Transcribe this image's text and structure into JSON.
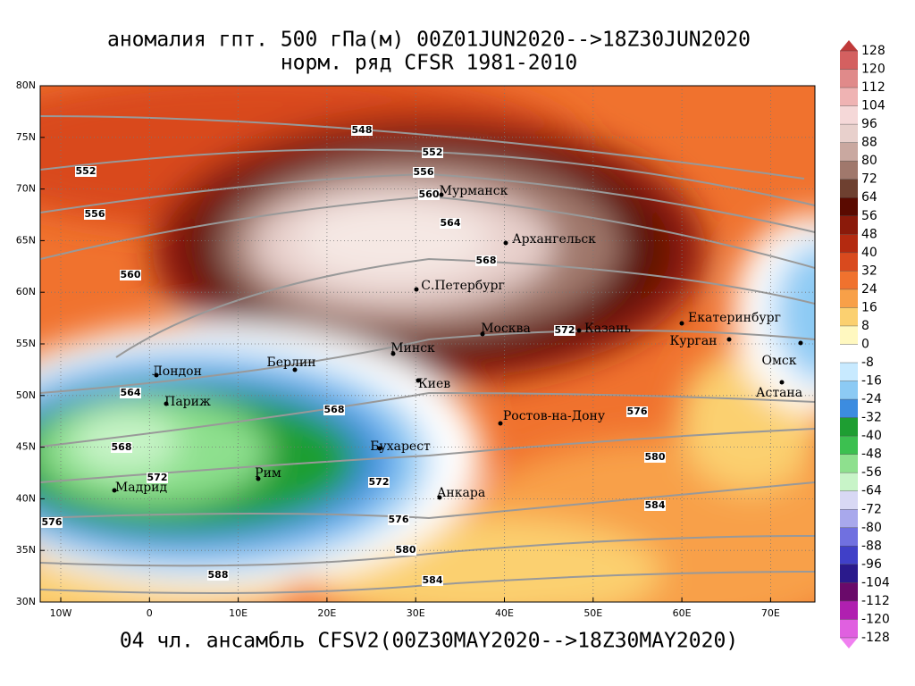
{
  "title": [
    "аномалия гпт. 500 гПа(м) 00Z01JUN2020-->18Z30JUN2020",
    "норм. ряд CFSR 1981-2010"
  ],
  "caption": "04 чл. ансамбль CFSV2(00Z30MAY2020-->18Z30MAY2020)",
  "lat_labels": [
    "80N",
    "75N",
    "70N",
    "65N",
    "60N",
    "55N",
    "50N",
    "45N",
    "40N",
    "35N",
    "30N"
  ],
  "lon_labels": [
    "10W",
    "0",
    "10E",
    "20E",
    "30E",
    "40E",
    "50E",
    "60E",
    "70E"
  ],
  "colorbar": {
    "levels": [
      128,
      120,
      112,
      104,
      96,
      88,
      80,
      72,
      64,
      56,
      48,
      40,
      32,
      24,
      16,
      8,
      0,
      -8,
      -16,
      -24,
      -32,
      -40,
      -48,
      -56,
      -64,
      -72,
      -80,
      -88,
      -96,
      -104,
      -112,
      -120,
      -128
    ],
    "colors": [
      "#c03a3a",
      "#d46060",
      "#e08a8a",
      "#efb3b3",
      "#f5d8d8",
      "#e8d0cc",
      "#c9a8a0",
      "#a0786c",
      "#6e4030",
      "#5a0a00",
      "#8b1a0a",
      "#b42a10",
      "#d94a1e",
      "#f0722e",
      "#f8a048",
      "#fbd070",
      "#fff8c0",
      "#ffffff",
      "#c8eaff",
      "#8ccaf4",
      "#3c8ce0",
      "#1e9e32",
      "#3cc050",
      "#8ee08e",
      "#c8f4c8",
      "#d8d8f4",
      "#a8a8ec",
      "#7070e0",
      "#4040c8",
      "#2a1a8c",
      "#6a0a6a",
      "#b020b0",
      "#e060e0",
      "#f080f0"
    ]
  },
  "cities": [
    "Мурманск",
    "Архангельск",
    "С.Петербург",
    "Москва",
    "Казань",
    "Екатеринбург",
    "Курган",
    "Омск",
    "Астана",
    "Минск",
    "Берлин",
    "Лондон",
    "Париж",
    "Киев",
    "Ростов-на-Дону",
    "Бухарест",
    "Рим",
    "Мадрид",
    "Анкара"
  ],
  "contour_labels": [
    548,
    552,
    552,
    556,
    556,
    560,
    564,
    568,
    560,
    572,
    564,
    568,
    576,
    568,
    572,
    580,
    572,
    576,
    576,
    584,
    580,
    588,
    584
  ]
}
